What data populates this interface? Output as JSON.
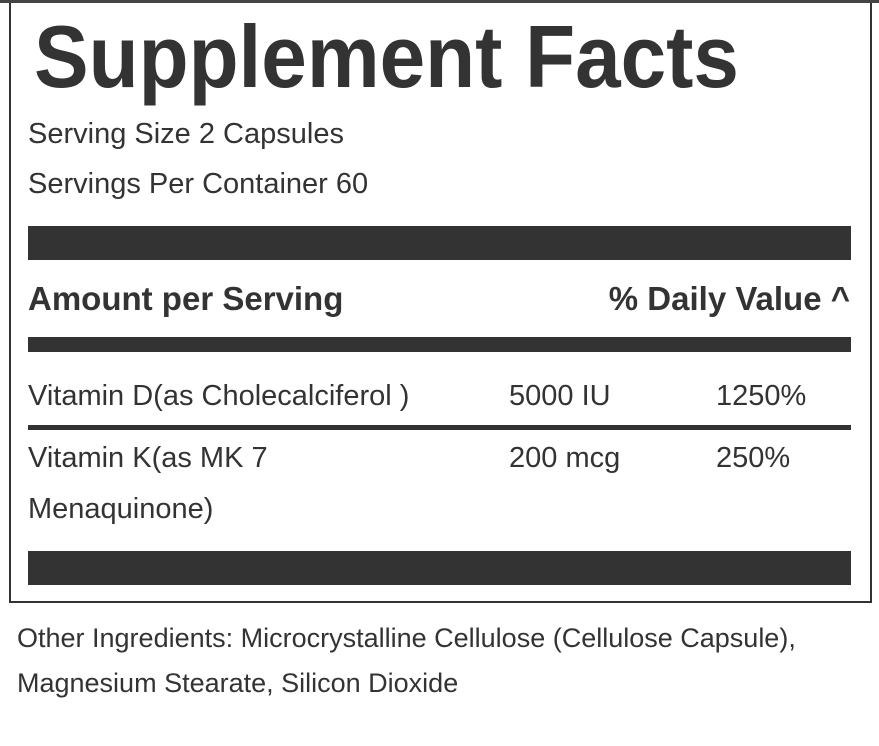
{
  "title": "Supplement Facts",
  "serving_size": "Serving Size 2 Capsules",
  "servings_per_container": "Servings Per Container 60",
  "header": {
    "amount": "Amount per Serving",
    "daily_value": "% Daily Value ^"
  },
  "rows": [
    {
      "name": "Vitamin D(as Cholecalciferol )",
      "amount": "5000 IU",
      "dv": "1250%"
    },
    {
      "name_line1": "Vitamin K(as MK 7",
      "name_line2": "Menaquinone)",
      "amount": "200 mcg",
      "dv": "250%"
    }
  ],
  "other_ingredients": "Other Ingredients: Microcrystalline Cellulose (Cellulose Capsule), Magnesium Stearate, Silicon Dioxide"
}
